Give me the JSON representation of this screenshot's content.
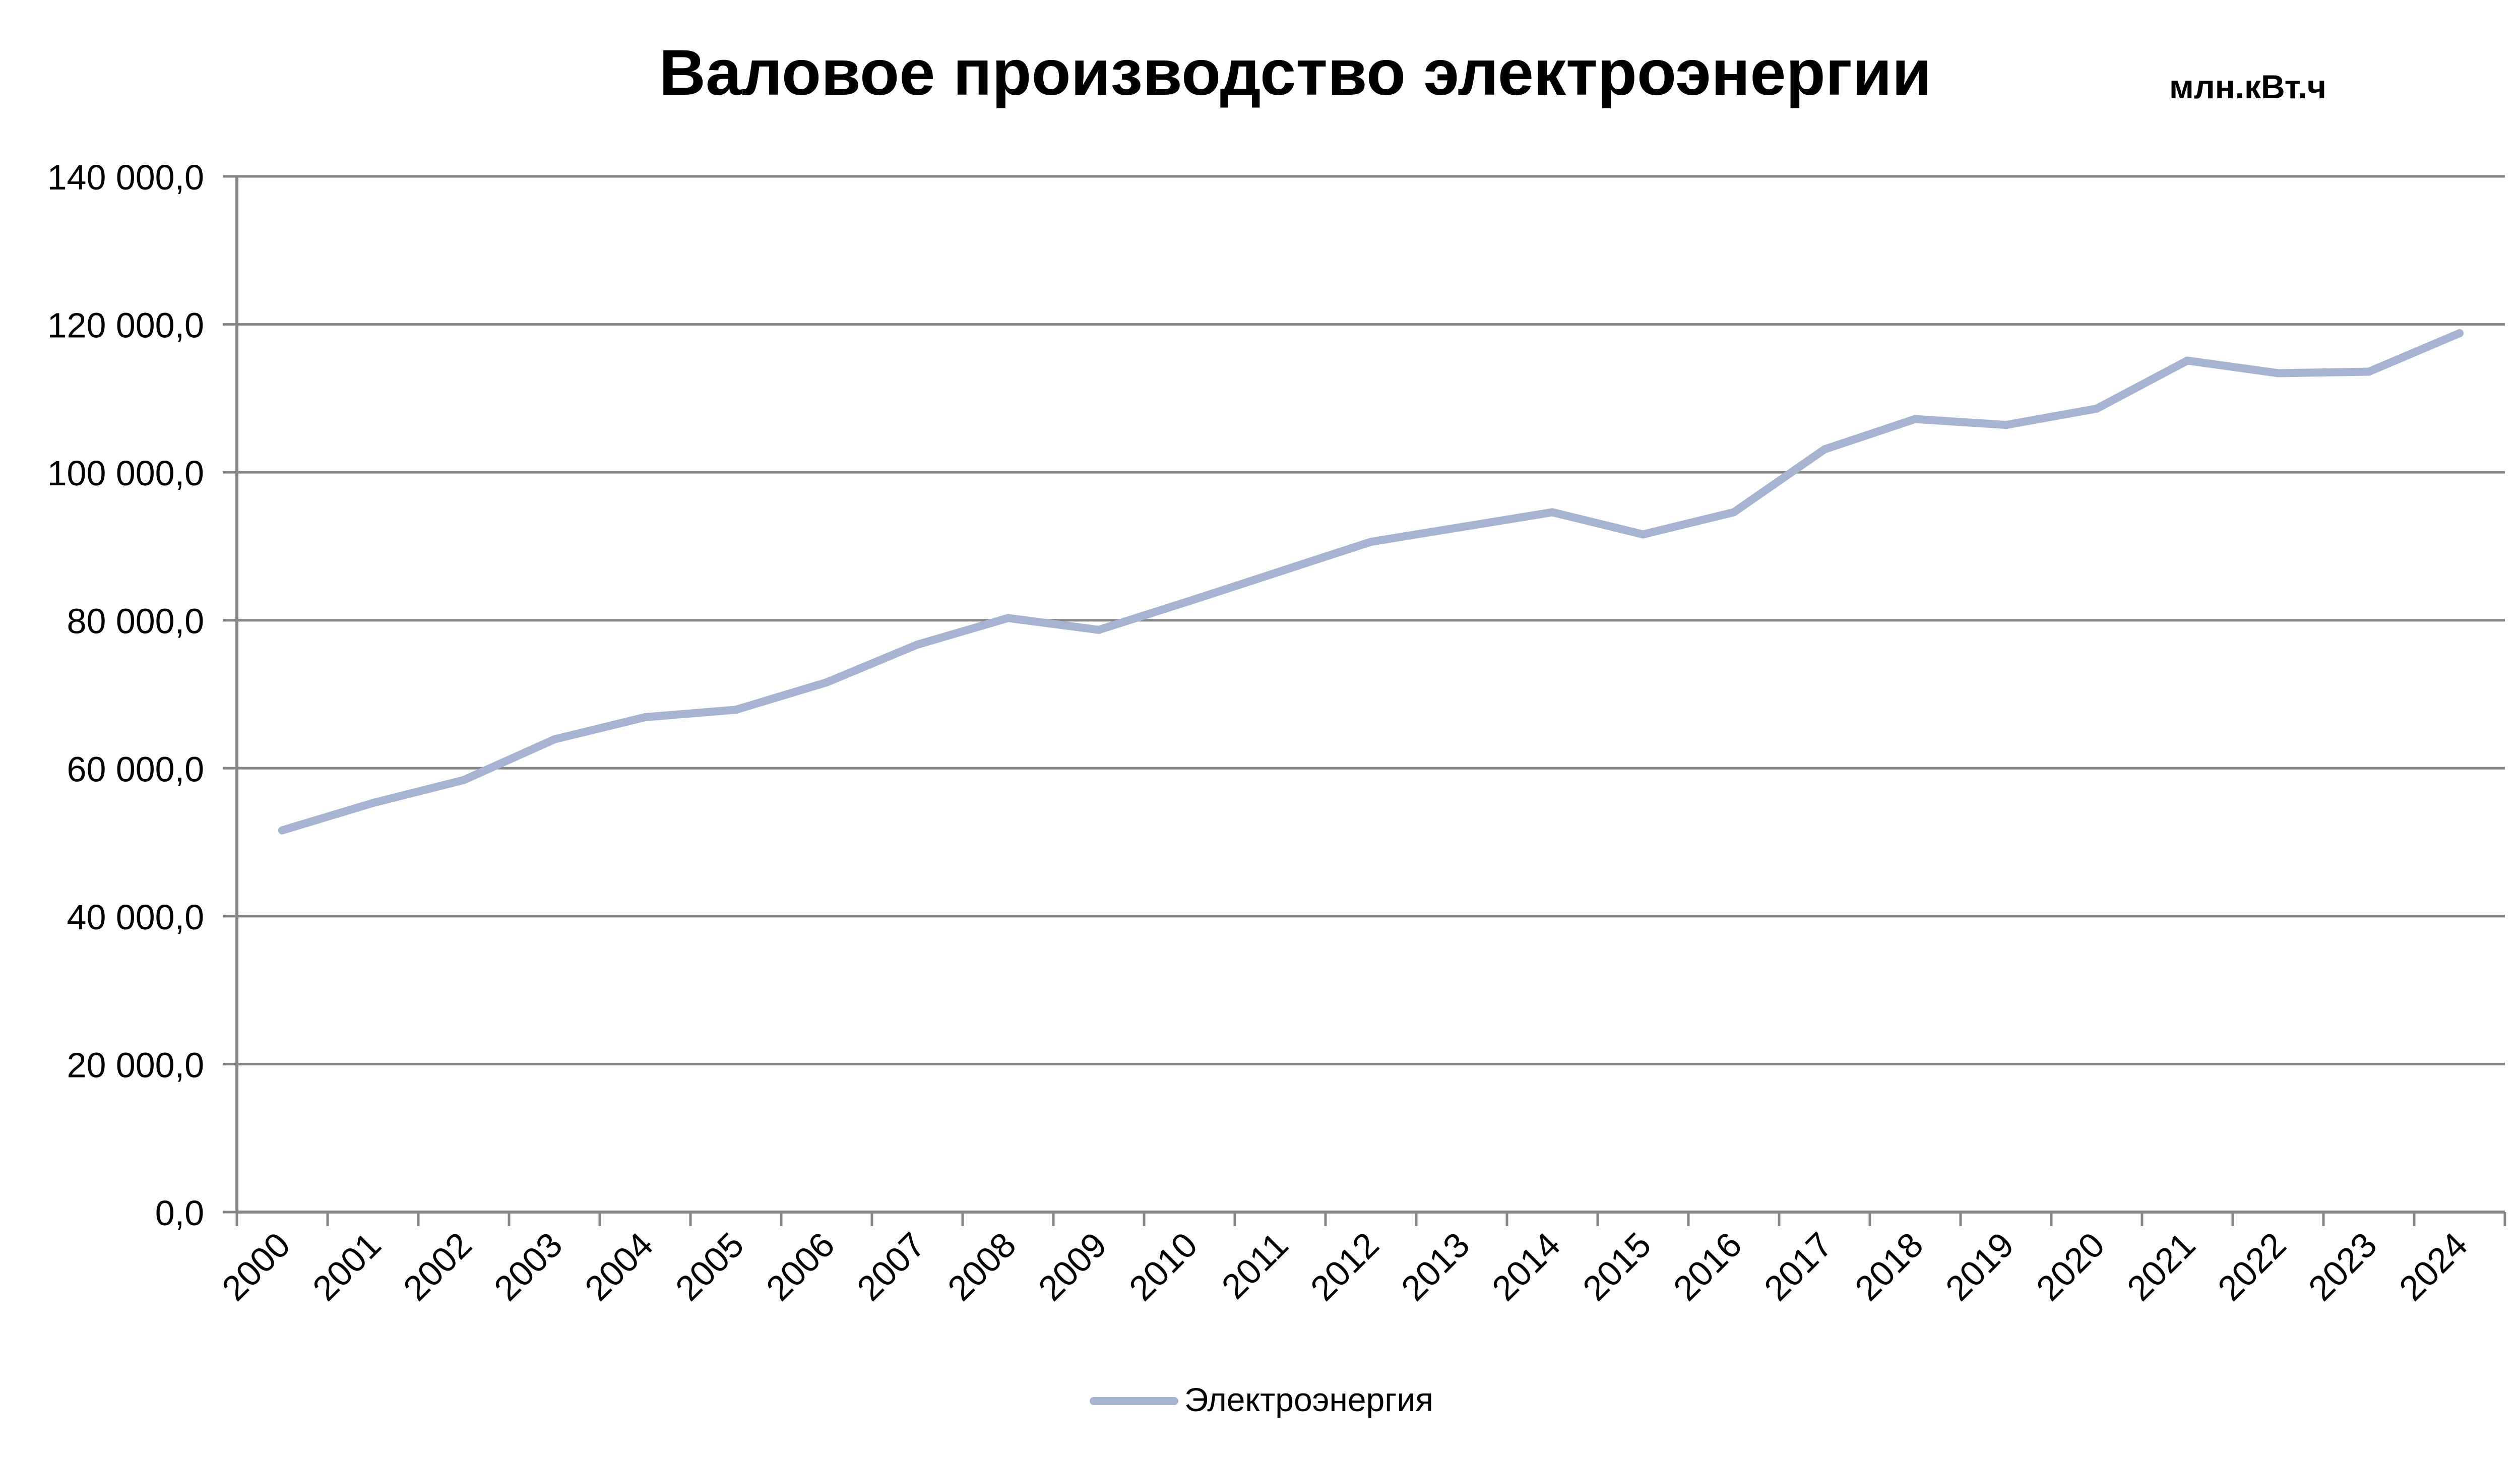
{
  "chart_data": {
    "type": "line",
    "title": "Валовое производство электроэнергии",
    "unit_label": "млн.кВт.ч",
    "xlabel": "",
    "ylabel": "",
    "categories": [
      "2000",
      "2001",
      "2002",
      "2003",
      "2004",
      "2005",
      "2006",
      "2007",
      "2008",
      "2009",
      "2010",
      "2011",
      "2012",
      "2013",
      "2014",
      "2015",
      "2016",
      "2017",
      "2018",
      "2019",
      "2020",
      "2021",
      "2022",
      "2023",
      "2024"
    ],
    "series": [
      {
        "name": "Электроэнергия",
        "color": "#a6b3d1",
        "values": [
          51600,
          55300,
          58400,
          63900,
          66900,
          67900,
          71600,
          76700,
          80300,
          78700,
          82600,
          86600,
          90600,
          92600,
          94600,
          91600,
          94600,
          103100,
          107200,
          106400,
          108600,
          115100,
          113400,
          113600,
          118800
        ]
      }
    ],
    "ylim": [
      0,
      140000
    ],
    "yticks": [
      0,
      20000,
      40000,
      60000,
      80000,
      100000,
      120000,
      140000
    ],
    "ytick_labels": [
      "0,0",
      "20 000,0",
      "40 000,0",
      "60 000,0",
      "80 000,0",
      "100 000,0",
      "120 000,0",
      "140 000,0"
    ],
    "grid": true,
    "legend_position": "bottom"
  }
}
